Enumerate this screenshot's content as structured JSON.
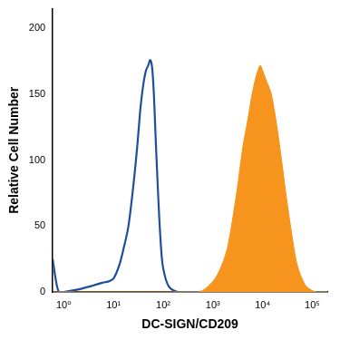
{
  "chart_data": {
    "type": "line",
    "x_label": "DC-SIGN/CD209",
    "y_label": "Relative Cell Number",
    "log": "x",
    "grid": false,
    "xlim": [
      0.6,
      200000
    ],
    "xticks": [
      {
        "value": 1,
        "label": "10⁰"
      },
      {
        "value": 10,
        "label": "10¹"
      },
      {
        "value": 100,
        "label": "10²"
      },
      {
        "value": 1000,
        "label": "10³"
      },
      {
        "value": 10000,
        "label": "10⁴"
      },
      {
        "value": 100000,
        "label": "10⁵"
      }
    ],
    "ylim": [
      0,
      215
    ],
    "yticks": [
      0,
      50,
      100,
      150,
      200
    ],
    "series": [
      {
        "type": "area",
        "color": "#f7941d",
        "x": [
          0.6,
          500,
          1000,
          1500,
          2000,
          3000,
          4000,
          5000,
          6000,
          7000,
          8000,
          9000,
          10000,
          12000,
          15000,
          20000,
          25000,
          30000,
          40000,
          50000,
          70000,
          90000,
          120000,
          200000
        ],
        "values": [
          0,
          0,
          8,
          20,
          35,
          75,
          110,
          130,
          148,
          160,
          168,
          172,
          168,
          160,
          150,
          122,
          95,
          72,
          40,
          20,
          6,
          2,
          0,
          0
        ]
      },
      {
        "type": "line",
        "color": "#1f4e9c",
        "x": [
          0.6,
          0.7,
          0.8,
          1,
          2,
          4,
          6,
          8,
          10,
          13,
          16,
          20,
          25,
          30,
          35,
          40,
          45,
          50,
          55,
          60,
          65,
          70,
          80,
          90,
          100,
          130,
          200,
          1000,
          200000
        ],
        "values": [
          25,
          8,
          0,
          0,
          2,
          5,
          7,
          8,
          10,
          20,
          33,
          50,
          80,
          110,
          140,
          158,
          168,
          172,
          176,
          170,
          150,
          120,
          70,
          35,
          18,
          4,
          0,
          0,
          0
        ]
      }
    ]
  }
}
